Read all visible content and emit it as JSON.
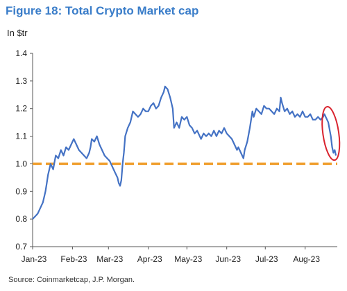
{
  "header": {
    "title": "Figure 18: Total Crypto Market cap",
    "unit": "In $tr"
  },
  "footer": {
    "source": "Source: Coinmarketcap, J.P. Morgan."
  },
  "colors": {
    "title": "#3a7dc9",
    "line": "#4472c4",
    "reference": "#f0a030",
    "highlight": "#d9232e"
  },
  "chart_data": {
    "type": "line",
    "ylim": [
      0.7,
      1.4
    ],
    "yticks": [
      0.7,
      0.8,
      0.9,
      1.0,
      1.1,
      1.2,
      1.3,
      1.4
    ],
    "ytick_labels": [
      "0.7",
      "0.8",
      "0.9",
      "1.0",
      "1.1",
      "1.2",
      "1.3",
      "1.4"
    ],
    "xticks": [
      "2023-01-01",
      "2023-02-01",
      "2023-03-01",
      "2023-04-01",
      "2023-05-01",
      "2023-06-01",
      "2023-07-01",
      "2023-08-01"
    ],
    "xtick_labels": [
      "Jan-23",
      "Feb-23",
      "Mar-23",
      "Apr-23",
      "May-23",
      "Jun-23",
      "Jul-23",
      "Aug-23"
    ],
    "xlim": [
      "2023-01-01",
      "2023-08-26"
    ],
    "grid": false,
    "reference_line": {
      "y": 1.0,
      "style": "dashed"
    },
    "highlight": {
      "x_start": "2023-08-17",
      "x_end": "2023-08-25",
      "y_low": 1.03,
      "y_high": 1.19,
      "shape": "ellipse"
    },
    "series": [
      {
        "x": [
          "2023-01-01",
          "2023-01-03",
          "2023-01-05",
          "2023-01-07",
          "2023-01-09",
          "2023-01-11",
          "2023-01-12",
          "2023-01-13",
          "2023-01-14",
          "2023-01-15",
          "2023-01-17",
          "2023-01-19",
          "2023-01-21",
          "2023-01-23",
          "2023-01-25",
          "2023-01-27",
          "2023-01-29",
          "2023-01-31",
          "2023-02-02",
          "2023-02-04",
          "2023-02-06",
          "2023-02-08",
          "2023-02-10",
          "2023-02-12",
          "2023-02-14",
          "2023-02-15",
          "2023-02-16",
          "2023-02-18",
          "2023-02-20",
          "2023-02-22",
          "2023-02-24",
          "2023-02-26",
          "2023-02-28",
          "2023-03-02",
          "2023-03-04",
          "2023-03-06",
          "2023-03-08",
          "2023-03-09",
          "2023-03-10",
          "2023-03-11",
          "2023-03-12",
          "2023-03-13",
          "2023-03-14",
          "2023-03-16",
          "2023-03-18",
          "2023-03-20",
          "2023-03-22",
          "2023-03-24",
          "2023-03-26",
          "2023-03-28",
          "2023-03-30",
          "2023-04-01",
          "2023-04-03",
          "2023-04-05",
          "2023-04-07",
          "2023-04-09",
          "2023-04-11",
          "2023-04-13",
          "2023-04-14",
          "2023-04-16",
          "2023-04-18",
          "2023-04-20",
          "2023-04-21",
          "2023-04-23",
          "2023-04-25",
          "2023-04-27",
          "2023-04-29",
          "2023-05-01",
          "2023-05-03",
          "2023-05-05",
          "2023-05-07",
          "2023-05-09",
          "2023-05-11",
          "2023-05-12",
          "2023-05-14",
          "2023-05-16",
          "2023-05-18",
          "2023-05-20",
          "2023-05-22",
          "2023-05-24",
          "2023-05-26",
          "2023-05-28",
          "2023-05-30",
          "2023-06-01",
          "2023-06-03",
          "2023-06-05",
          "2023-06-07",
          "2023-06-09",
          "2023-06-10",
          "2023-06-12",
          "2023-06-14",
          "2023-06-15",
          "2023-06-17",
          "2023-06-19",
          "2023-06-21",
          "2023-06-22",
          "2023-06-24",
          "2023-06-26",
          "2023-06-28",
          "2023-06-30",
          "2023-07-02",
          "2023-07-04",
          "2023-07-06",
          "2023-07-08",
          "2023-07-10",
          "2023-07-12",
          "2023-07-13",
          "2023-07-14",
          "2023-07-16",
          "2023-07-18",
          "2023-07-20",
          "2023-07-22",
          "2023-07-24",
          "2023-07-26",
          "2023-07-28",
          "2023-07-30",
          "2023-08-01",
          "2023-08-03",
          "2023-08-05",
          "2023-08-07",
          "2023-08-09",
          "2023-08-11",
          "2023-08-13",
          "2023-08-15",
          "2023-08-16",
          "2023-08-17",
          "2023-08-18",
          "2023-08-19",
          "2023-08-21",
          "2023-08-22",
          "2023-08-23",
          "2023-08-24",
          "2023-08-25"
        ],
        "y": [
          0.8,
          0.81,
          0.82,
          0.84,
          0.86,
          0.9,
          0.93,
          0.96,
          0.98,
          1.0,
          0.98,
          1.03,
          1.02,
          1.05,
          1.03,
          1.06,
          1.05,
          1.07,
          1.09,
          1.07,
          1.05,
          1.04,
          1.03,
          1.02,
          1.04,
          1.06,
          1.09,
          1.08,
          1.1,
          1.07,
          1.05,
          1.03,
          1.02,
          1.01,
          0.99,
          0.97,
          0.95,
          0.93,
          0.92,
          0.94,
          1.0,
          1.04,
          1.1,
          1.13,
          1.15,
          1.19,
          1.18,
          1.17,
          1.18,
          1.2,
          1.19,
          1.19,
          1.21,
          1.22,
          1.2,
          1.21,
          1.24,
          1.26,
          1.28,
          1.27,
          1.24,
          1.2,
          1.13,
          1.15,
          1.13,
          1.17,
          1.16,
          1.17,
          1.14,
          1.13,
          1.11,
          1.12,
          1.1,
          1.09,
          1.11,
          1.1,
          1.11,
          1.1,
          1.12,
          1.1,
          1.12,
          1.11,
          1.13,
          1.11,
          1.1,
          1.09,
          1.07,
          1.05,
          1.06,
          1.04,
          1.02,
          1.05,
          1.08,
          1.13,
          1.19,
          1.17,
          1.2,
          1.19,
          1.18,
          1.21,
          1.2,
          1.2,
          1.19,
          1.18,
          1.2,
          1.19,
          1.24,
          1.22,
          1.19,
          1.2,
          1.18,
          1.19,
          1.17,
          1.18,
          1.17,
          1.19,
          1.17,
          1.17,
          1.18,
          1.16,
          1.16,
          1.17,
          1.16,
          1.17,
          1.18,
          1.17,
          1.16,
          1.15,
          1.1,
          1.06,
          1.04,
          1.05,
          1.03
        ]
      }
    ]
  }
}
